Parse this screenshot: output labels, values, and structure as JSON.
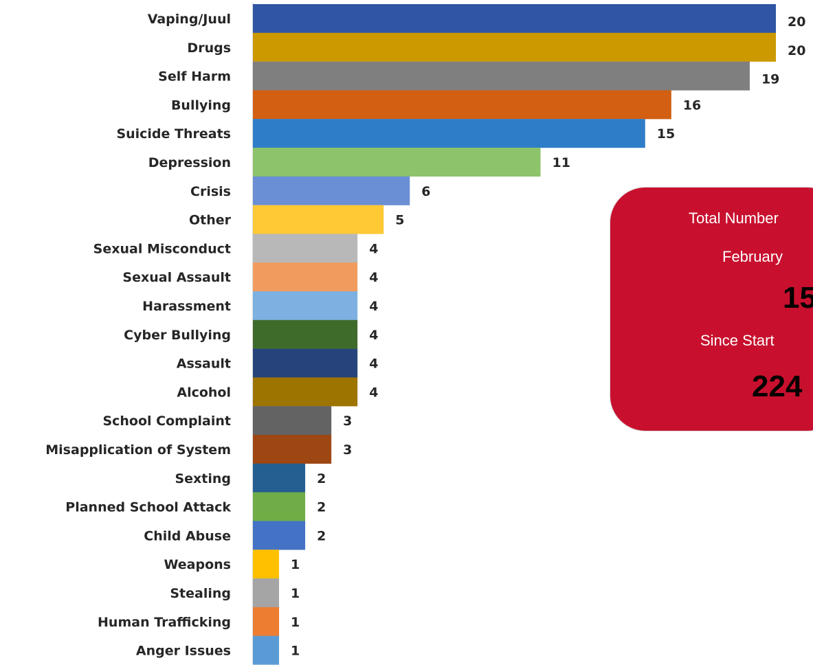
{
  "chart_data": {
    "type": "bar",
    "orientation": "horizontal",
    "categories": [
      "Vaping/Juul",
      "Drugs",
      "Self Harm",
      "Bullying",
      "Suicide Threats",
      "Depression",
      "Crisis",
      "Other",
      "Sexual Misconduct",
      "Sexual Assault",
      "Harassment",
      "Cyber Bullying",
      "Assault",
      "Alcohol",
      "School Complaint",
      "Misapplication of System",
      "Sexting",
      "Planned School Attack",
      "Child Abuse",
      "Weapons",
      "Stealing",
      "Human Trafficking",
      "Anger Issues"
    ],
    "values": [
      20,
      20,
      19,
      16,
      15,
      11,
      6,
      5,
      4,
      4,
      4,
      4,
      4,
      4,
      3,
      3,
      2,
      2,
      2,
      1,
      1,
      1,
      1
    ],
    "colors": [
      "#2f55a4",
      "#cc9900",
      "#7f7f7f",
      "#d25f12",
      "#2e7dc9",
      "#8dc36a",
      "#6a8fd4",
      "#ffc935",
      "#b8b8b8",
      "#f19b5e",
      "#7eb1e1",
      "#3f6b2a",
      "#26447b",
      "#9e7400",
      "#636363",
      "#9e4712",
      "#255e91",
      "#70ad47",
      "#4472c4",
      "#ffc000",
      "#a5a5a5",
      "#ed7d31",
      "#5b9bd5"
    ],
    "xlim": [
      0,
      20
    ],
    "grid": false
  },
  "info_box": {
    "line1": "Total Number",
    "line2": "February",
    "month_value": "15",
    "line3": "Since Start",
    "total_value": "224"
  }
}
